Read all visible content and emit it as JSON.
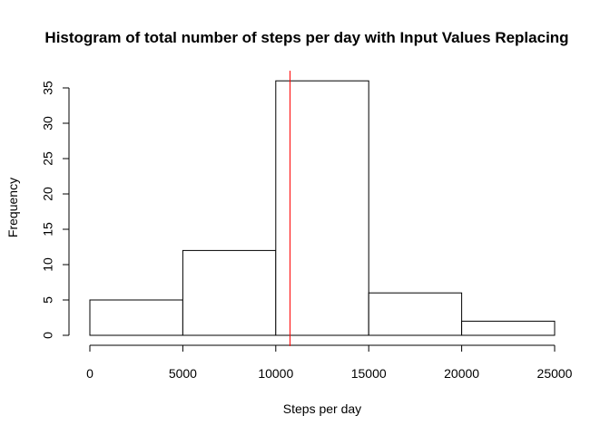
{
  "chart_data": {
    "type": "histogram",
    "title": "Histogram of total number of steps per day with Input Values Replacing",
    "xlabel": "Steps per day",
    "ylabel": "Frequency",
    "bins": [
      {
        "start": 0,
        "end": 5000,
        "count": 5
      },
      {
        "start": 5000,
        "end": 10000,
        "count": 12
      },
      {
        "start": 10000,
        "end": 15000,
        "count": 36
      },
      {
        "start": 15000,
        "end": 20000,
        "count": 6
      },
      {
        "start": 20000,
        "end": 25000,
        "count": 2
      }
    ],
    "xticks": [
      0,
      5000,
      10000,
      15000,
      20000,
      25000
    ],
    "yticks": [
      0,
      5,
      10,
      15,
      20,
      25,
      30,
      35
    ],
    "xlim": [
      0,
      25000
    ],
    "ylim": [
      0,
      36
    ],
    "vline": {
      "x": 10766,
      "color": "#ff0000"
    },
    "bar_fill": "#ffffff",
    "bar_stroke": "#000000",
    "grid": false,
    "legend": "none"
  }
}
